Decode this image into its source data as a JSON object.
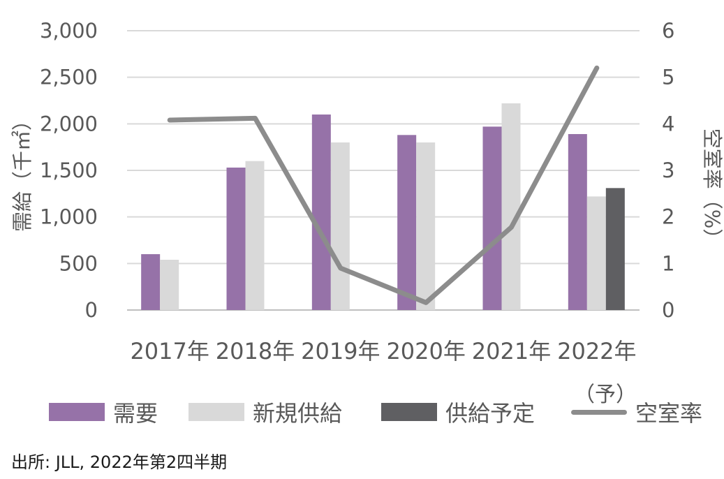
{
  "chart_data": {
    "type": "bar",
    "categories": [
      "2017年",
      "2018年",
      "2019年",
      "2020年",
      "2021年",
      "2022年"
    ],
    "series": [
      {
        "name": "需要",
        "kind": "bar",
        "axis": "left",
        "color": "#9672a8",
        "values": [
          600,
          1530,
          2100,
          1880,
          1970,
          1890
        ]
      },
      {
        "name": "新規供給",
        "kind": "bar",
        "axis": "left",
        "color": "#d9d9d9",
        "values": [
          540,
          1600,
          1800,
          1800,
          2220,
          1220
        ]
      },
      {
        "name": "供給予定",
        "kind": "bar",
        "axis": "left",
        "color": "#5f5f62",
        "values": [
          null,
          null,
          null,
          null,
          null,
          1310
        ]
      },
      {
        "name": "空室率",
        "kind": "line",
        "axis": "right",
        "color": "#8c8c8c",
        "values": [
          4.08,
          4.12,
          0.9,
          0.16,
          1.78,
          5.2
        ]
      }
    ],
    "ylabel": "需給（千㎡）",
    "y2label": "空室率（%）",
    "ylim": [
      0,
      3000
    ],
    "y2lim": [
      0,
      6
    ],
    "yticks": [
      "0",
      "500",
      "1,000",
      "1,500",
      "2,000",
      "2,500",
      "3,000"
    ],
    "y2ticks": [
      "0",
      "1",
      "2",
      "3",
      "4",
      "5",
      "6"
    ],
    "grid": true,
    "legend": "bottom",
    "legend_note": "（予）"
  },
  "source_text": "出所: JLL, 2022年第2四半期"
}
